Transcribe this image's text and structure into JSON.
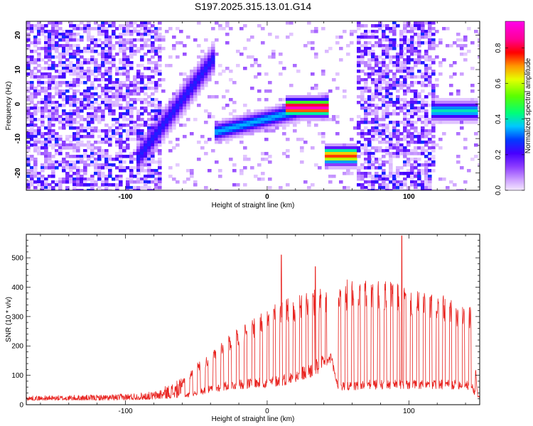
{
  "chart_data": [
    {
      "type": "heatmap",
      "title": "S197.2025.315.13.01.G14",
      "xlabel": "Height of straight line (km)",
      "ylabel": "Frequency (Hz)",
      "xlim": [
        -170,
        150
      ],
      "ylim": [
        -25,
        24
      ],
      "xticks": [
        -100,
        0,
        100
      ],
      "yticks": [
        20,
        10,
        0,
        -10,
        -20
      ],
      "colorbar": {
        "label": "Normalized spectral amplitude",
        "range": [
          0.0,
          0.95
        ],
        "ticks": [
          0.0,
          0.2,
          0.4,
          0.6,
          0.8
        ]
      },
      "features": [
        {
          "x0": -170,
          "x1": -75,
          "f0": -25,
          "f1": 24,
          "level": 0.12,
          "kind": "background noise"
        },
        {
          "x0": -90,
          "x1": -40,
          "f0": -15,
          "f1": 12,
          "level": 0.25,
          "kind": "rising ridge"
        },
        {
          "x0": -35,
          "x1": 40,
          "f0": -8,
          "f1": 0,
          "level": 0.35,
          "kind": "converging track"
        },
        {
          "x0": 15,
          "x1": 40,
          "f0": -1,
          "f1": -1,
          "level": 0.92,
          "kind": "peak track"
        },
        {
          "x0": 42,
          "x1": 62,
          "f0": -15,
          "f1": -15,
          "level": 0.75,
          "kind": "offset track"
        },
        {
          "x0": 62,
          "x1": 118,
          "f0": -25,
          "f1": 24,
          "level": 0.12,
          "kind": "background noise"
        },
        {
          "x0": 118,
          "x1": 147,
          "f0": -2,
          "f1": -2,
          "level": 0.4,
          "kind": "late track"
        }
      ]
    },
    {
      "type": "line",
      "xlabel": "Height of straight line (km)",
      "ylabel": "SNR (10 * v/v)",
      "xlim": [
        -170,
        150
      ],
      "ylim": [
        0,
        580
      ],
      "xticks": [
        -100,
        0,
        100
      ],
      "yticks": [
        0,
        100,
        200,
        300,
        400,
        500
      ],
      "color": "#e8231f",
      "envelope": {
        "x": [
          -170,
          -110,
          -80,
          -60,
          -50,
          -40,
          -30,
          -20,
          -10,
          0,
          10,
          20,
          30,
          40,
          45,
          50,
          60,
          70,
          80,
          90,
          100,
          110,
          120,
          130,
          140,
          145,
          148,
          150
        ],
        "baseline": [
          15,
          15,
          18,
          25,
          40,
          50,
          60,
          65,
          70,
          70,
          80,
          90,
          110,
          130,
          150,
          60,
          60,
          65,
          65,
          65,
          65,
          65,
          65,
          65,
          65,
          55,
          25,
          25
        ],
        "peak": [
          30,
          35,
          45,
          90,
          140,
          180,
          230,
          270,
          300,
          330,
          360,
          380,
          390,
          400,
          410,
          420,
          430,
          430,
          420,
          420,
          400,
          380,
          380,
          360,
          350,
          330,
          60,
          40
        ]
      },
      "spikes": [
        {
          "x": 10,
          "y": 510
        },
        {
          "x": 95,
          "y": 575
        },
        {
          "x": 34,
          "y": 470
        }
      ]
    }
  ]
}
